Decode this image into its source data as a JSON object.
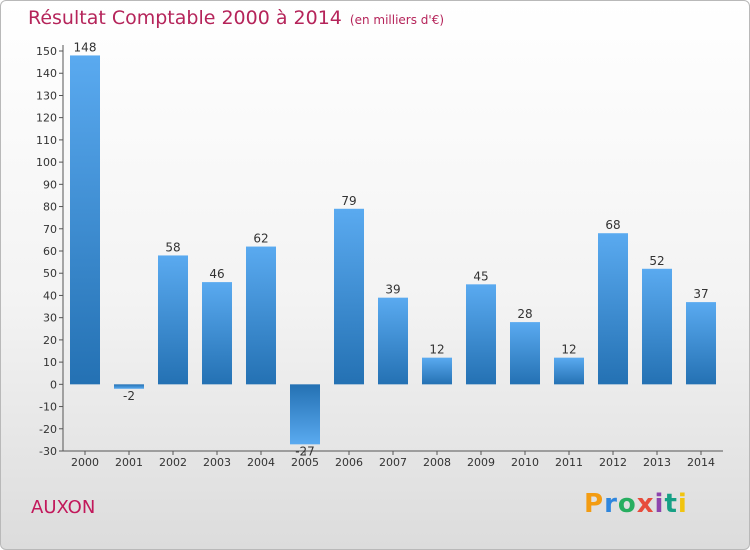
{
  "title": "Résultat Comptable 2000 à 2014",
  "subtitle": "(en milliers d'€)",
  "place": "AUXON",
  "logo": "Proxiti",
  "colors": {
    "bar_top": "#5aaaf0",
    "bar_bottom": "#2471b3",
    "title": "#b5245a",
    "place": "#c2185b"
  },
  "chart_data": {
    "type": "bar",
    "title": "Résultat Comptable 2000 à 2014",
    "subtitle": "(en milliers d'€)",
    "categories": [
      "2000",
      "2001",
      "2002",
      "2003",
      "2004",
      "2005",
      "2006",
      "2007",
      "2008",
      "2009",
      "2010",
      "2011",
      "2012",
      "2013",
      "2014"
    ],
    "values": [
      148,
      -2,
      58,
      46,
      62,
      -27,
      79,
      39,
      12,
      45,
      28,
      12,
      68,
      52,
      37
    ],
    "ylim": [
      -30,
      150
    ],
    "ytick_step": 10,
    "grid": false,
    "legend": "none"
  }
}
